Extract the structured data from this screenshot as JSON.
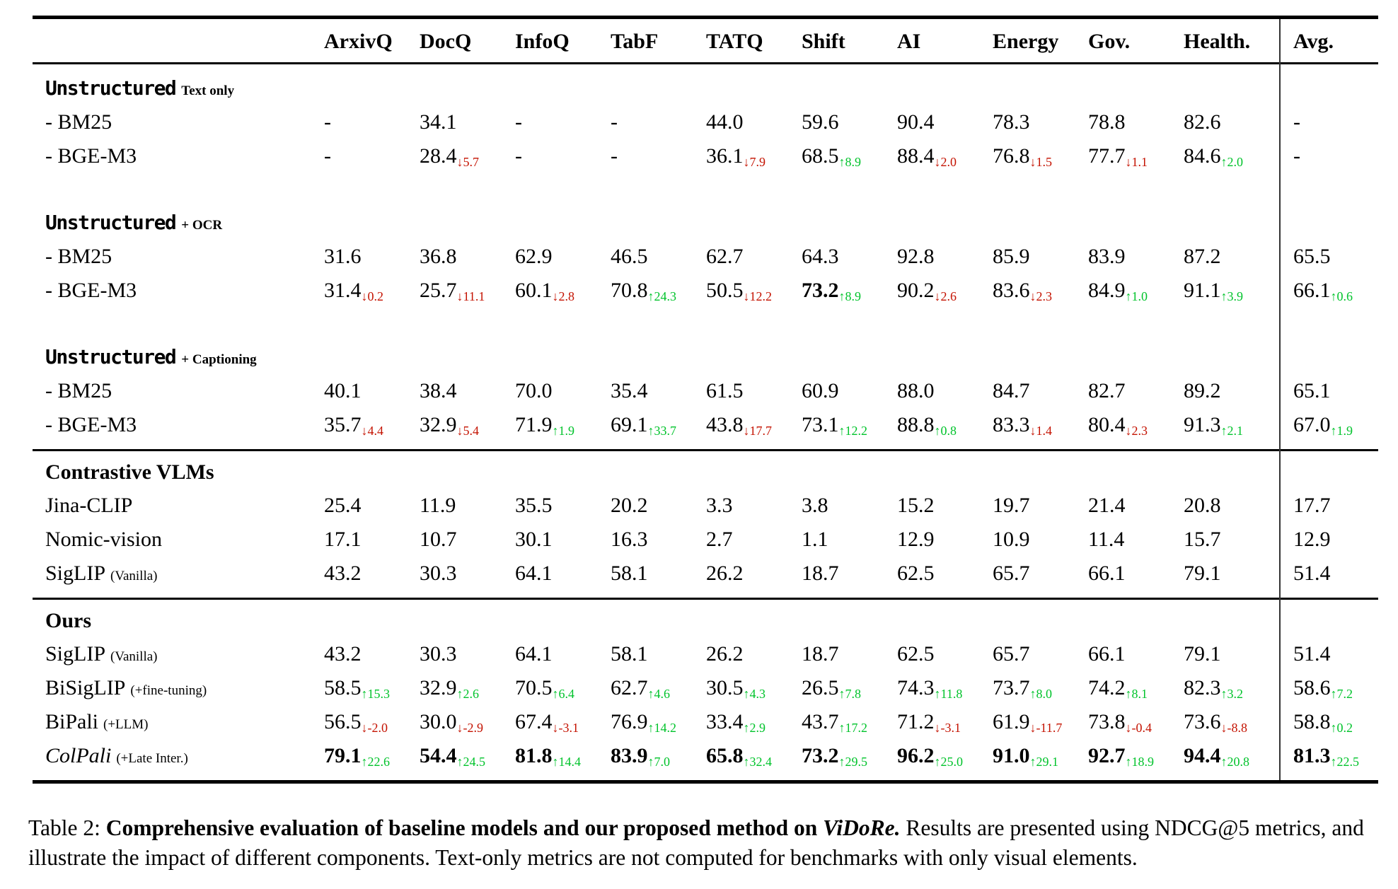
{
  "colors": {
    "up": "#00c32b",
    "down": "#c41200"
  },
  "header": {
    "columns": [
      "ArxivQ",
      "DocQ",
      "InfoQ",
      "TabF",
      "TATQ",
      "Shift",
      "AI",
      "Energy",
      "Gov.",
      "Health.",
      "Avg."
    ]
  },
  "sections": [
    {
      "style": "mono",
      "title": "Unstructured",
      "suffix": "Text only",
      "gap_above": false,
      "rule_above": false,
      "rows": [
        {
          "label": "- BM25",
          "cells": [
            "-",
            "34.1",
            "-",
            "-",
            "44.0",
            "59.6",
            "90.4",
            "78.3",
            "78.8",
            "82.6",
            "-"
          ]
        },
        {
          "label": "- BGE-M3",
          "cells": [
            "-",
            {
              "v": "28.4",
              "d": "5.7",
              "dir": "down"
            },
            "-",
            "-",
            {
              "v": "36.1",
              "d": "7.9",
              "dir": "down"
            },
            {
              "v": "68.5",
              "d": "8.9",
              "dir": "up"
            },
            {
              "v": "88.4",
              "d": "2.0",
              "dir": "down"
            },
            {
              "v": "76.8",
              "d": "1.5",
              "dir": "down"
            },
            {
              "v": "77.7",
              "d": "1.1",
              "dir": "down"
            },
            {
              "v": "84.6",
              "d": "2.0",
              "dir": "up"
            },
            "-"
          ]
        }
      ]
    },
    {
      "style": "mono",
      "title": "Unstructured",
      "suffix": "+ OCR",
      "gap_above": true,
      "rule_above": false,
      "rows": [
        {
          "label": "- BM25",
          "cells": [
            "31.6",
            "36.8",
            "62.9",
            "46.5",
            "62.7",
            "64.3",
            "92.8",
            "85.9",
            "83.9",
            "87.2",
            "65.5"
          ]
        },
        {
          "label": "- BGE-M3",
          "cells": [
            {
              "v": "31.4",
              "d": "0.2",
              "dir": "down"
            },
            {
              "v": "25.7",
              "d": "11.1",
              "dir": "down"
            },
            {
              "v": "60.1",
              "d": "2.8",
              "dir": "down"
            },
            {
              "v": "70.8",
              "d": "24.3",
              "dir": "up"
            },
            {
              "v": "50.5",
              "d": "12.2",
              "dir": "down"
            },
            {
              "v": "73.2",
              "d": "8.9",
              "dir": "up",
              "b": true
            },
            {
              "v": "90.2",
              "d": "2.6",
              "dir": "down"
            },
            {
              "v": "83.6",
              "d": "2.3",
              "dir": "down"
            },
            {
              "v": "84.9",
              "d": "1.0",
              "dir": "up"
            },
            {
              "v": "91.1",
              "d": "3.9",
              "dir": "up"
            },
            {
              "v": "66.1",
              "d": "0.6",
              "dir": "up"
            }
          ]
        }
      ]
    },
    {
      "style": "mono",
      "title": "Unstructured",
      "suffix": "+ Captioning",
      "gap_above": true,
      "rule_above": false,
      "rows": [
        {
          "label": "- BM25",
          "cells": [
            "40.1",
            "38.4",
            "70.0",
            "35.4",
            "61.5",
            "60.9",
            "88.0",
            "84.7",
            "82.7",
            "89.2",
            "65.1"
          ]
        },
        {
          "label": "- BGE-M3",
          "cells": [
            {
              "v": "35.7",
              "d": "4.4",
              "dir": "down"
            },
            {
              "v": "32.9",
              "d": "5.4",
              "dir": "down"
            },
            {
              "v": "71.9",
              "d": "1.9",
              "dir": "up"
            },
            {
              "v": "69.1",
              "d": "33.7",
              "dir": "up"
            },
            {
              "v": "43.8",
              "d": "17.7",
              "dir": "down"
            },
            {
              "v": "73.1",
              "d": "12.2",
              "dir": "up"
            },
            {
              "v": "88.8",
              "d": "0.8",
              "dir": "up"
            },
            {
              "v": "83.3",
              "d": "1.4",
              "dir": "down"
            },
            {
              "v": "80.4",
              "d": "2.3",
              "dir": "down"
            },
            {
              "v": "91.3",
              "d": "2.1",
              "dir": "up"
            },
            {
              "v": "67.0",
              "d": "1.9",
              "dir": "up"
            }
          ]
        }
      ]
    },
    {
      "style": "serif",
      "title": "Contrastive VLMs",
      "suffix": "",
      "gap_above": false,
      "rule_above": true,
      "rows": [
        {
          "label": "Jina-CLIP",
          "cells": [
            "25.4",
            "11.9",
            "35.5",
            "20.2",
            "3.3",
            "3.8",
            "15.2",
            "19.7",
            "21.4",
            "20.8",
            "17.7"
          ]
        },
        {
          "label": "Nomic-vision",
          "cells": [
            "17.1",
            "10.7",
            "30.1",
            "16.3",
            "2.7",
            "1.1",
            "12.9",
            "10.9",
            "11.4",
            "15.7",
            "12.9"
          ]
        },
        {
          "label": "SigLIP",
          "label_suffix": "(Vanilla)",
          "cells": [
            "43.2",
            "30.3",
            "64.1",
            "58.1",
            "26.2",
            "18.7",
            "62.5",
            "65.7",
            "66.1",
            "79.1",
            "51.4"
          ]
        }
      ]
    },
    {
      "style": "serif",
      "title": "Ours",
      "suffix": "",
      "gap_above": false,
      "rule_above": true,
      "rows": [
        {
          "label": "SigLIP",
          "label_suffix": "(Vanilla)",
          "cells": [
            "43.2",
            "30.3",
            "64.1",
            "58.1",
            "26.2",
            "18.7",
            "62.5",
            "65.7",
            "66.1",
            "79.1",
            "51.4"
          ]
        },
        {
          "label": "BiSigLIP",
          "label_suffix": "(+fine-tuning)",
          "cells": [
            {
              "v": "58.5",
              "d": "15.3",
              "dir": "up"
            },
            {
              "v": "32.9",
              "d": "2.6",
              "dir": "up"
            },
            {
              "v": "70.5",
              "d": "6.4",
              "dir": "up"
            },
            {
              "v": "62.7",
              "d": "4.6",
              "dir": "up"
            },
            {
              "v": "30.5",
              "d": "4.3",
              "dir": "up"
            },
            {
              "v": "26.5",
              "d": "7.8",
              "dir": "up"
            },
            {
              "v": "74.3",
              "d": "11.8",
              "dir": "up"
            },
            {
              "v": "73.7",
              "d": "8.0",
              "dir": "up"
            },
            {
              "v": "74.2",
              "d": "8.1",
              "dir": "up"
            },
            {
              "v": "82.3",
              "d": "3.2",
              "dir": "up"
            },
            {
              "v": "58.6",
              "d": "7.2",
              "dir": "up"
            }
          ]
        },
        {
          "label": "BiPali",
          "label_suffix": "(+LLM)",
          "cells": [
            {
              "v": "56.5",
              "d": "-2.0",
              "dir": "down"
            },
            {
              "v": "30.0",
              "d": "-2.9",
              "dir": "down"
            },
            {
              "v": "67.4",
              "d": "-3.1",
              "dir": "down"
            },
            {
              "v": "76.9",
              "d": "14.2",
              "dir": "up"
            },
            {
              "v": "33.4",
              "d": "2.9",
              "dir": "up"
            },
            {
              "v": "43.7",
              "d": "17.2",
              "dir": "up"
            },
            {
              "v": "71.2",
              "d": "-3.1",
              "dir": "down"
            },
            {
              "v": "61.9",
              "d": "-11.7",
              "dir": "down"
            },
            {
              "v": "73.8",
              "d": "-0.4",
              "dir": "down"
            },
            {
              "v": "73.6",
              "d": "-8.8",
              "dir": "down"
            },
            {
              "v": "58.8",
              "d": "0.2",
              "dir": "up"
            }
          ]
        },
        {
          "label": "ColPali",
          "label_suffix": "(+Late Inter.)",
          "italic": true,
          "cells": [
            {
              "v": "79.1",
              "d": "22.6",
              "dir": "up",
              "b": true
            },
            {
              "v": "54.4",
              "d": "24.5",
              "dir": "up",
              "b": true
            },
            {
              "v": "81.8",
              "d": "14.4",
              "dir": "up",
              "b": true
            },
            {
              "v": "83.9",
              "d": "7.0",
              "dir": "up",
              "b": true
            },
            {
              "v": "65.8",
              "d": "32.4",
              "dir": "up",
              "b": true
            },
            {
              "v": "73.2",
              "d": "29.5",
              "dir": "up",
              "b": true
            },
            {
              "v": "96.2",
              "d": "25.0",
              "dir": "up",
              "b": true
            },
            {
              "v": "91.0",
              "d": "29.1",
              "dir": "up",
              "b": true
            },
            {
              "v": "92.7",
              "d": "18.9",
              "dir": "up",
              "b": true
            },
            {
              "v": "94.4",
              "d": "20.8",
              "dir": "up",
              "b": true
            },
            {
              "v": "81.3",
              "d": "22.5",
              "dir": "up",
              "b": true
            }
          ]
        }
      ]
    }
  ],
  "caption": {
    "prefix": "Table 2: ",
    "bold": "Comprehensive evaluation of baseline models and our proposed method on ",
    "bold_italic": "ViDoRe.",
    "rest": " Results are presented using NDCG@5 metrics, and illustrate the impact of different components. Text-only metrics are not computed for benchmarks with only visual elements."
  }
}
